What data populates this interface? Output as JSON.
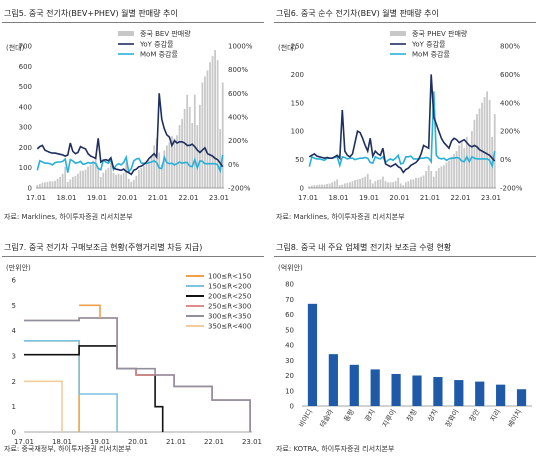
{
  "chart_data": [
    {
      "type": "bar",
      "title": "그림5. 중국 전기차(BEV+PHEV) 월별 판매량 추이",
      "ylabel": "(천대)",
      "ylim": [
        0,
        700
      ],
      "y2lim": [
        -200,
        1000
      ],
      "yticks": [
        "0",
        "100",
        "200",
        "300",
        "400",
        "500",
        "600",
        "700"
      ],
      "y2ticks": [
        "-200%",
        "0%",
        "200%",
        "400%",
        "600%",
        "800%",
        "1000%"
      ],
      "x_ticks": [
        "17.01",
        "18.01",
        "19.01",
        "20.01",
        "21.01",
        "22.01",
        "23.01"
      ],
      "legend_position": "top-right",
      "source": "자료: Marklines, 하이투자증권 리서치본부",
      "bar_series": {
        "name": "중국 BEV 판매량",
        "color": "#c8c8c8"
      },
      "line_series": [
        {
          "name": "YoY 증감률",
          "color": "#1f2f5e"
        },
        {
          "name": "MoM 증감률",
          "color": "#2ab0d8"
        }
      ],
      "months": 74,
      "bars": [
        15,
        20,
        25,
        28,
        30,
        33,
        32,
        35,
        45,
        55,
        70,
        105,
        30,
        42,
        55,
        60,
        70,
        85,
        85,
        90,
        105,
        115,
        135,
        150,
        100,
        55,
        75,
        90,
        100,
        140,
        75,
        65,
        70,
        65,
        75,
        125,
        45,
        30,
        40,
        60,
        90,
        100,
        110,
        115,
        135,
        160,
        210,
        245,
        175,
        115,
        185,
        210,
        225,
        255,
        245,
        260,
        310,
        340,
        390,
        460,
        400,
        320,
        460,
        310,
        410,
        520,
        550,
        580,
        620,
        650,
        680,
        630,
        290,
        520
      ],
      "yoy": [
        130,
        150,
        160,
        120,
        110,
        100,
        95,
        95,
        90,
        85,
        80,
        70,
        80,
        180,
        110,
        90,
        100,
        150,
        140,
        130,
        90,
        70,
        60,
        50,
        220,
        20,
        35,
        40,
        30,
        55,
        -30,
        -40,
        -45,
        -50,
        -40,
        -60,
        -70,
        -85,
        -50,
        -40,
        -20,
        -15,
        0,
        20,
        50,
        70,
        90,
        60,
        600,
        380,
        300,
        250,
        230,
        160,
        200,
        180,
        190,
        190,
        180,
        160,
        160,
        170,
        150,
        120,
        100,
        120,
        140,
        90,
        80,
        70,
        50,
        40,
        10,
        -20
      ],
      "mom": [
        -50,
        30,
        20,
        10,
        10,
        5,
        -5,
        15,
        20,
        20,
        25,
        45,
        -70,
        40,
        30,
        10,
        15,
        25,
        0,
        5,
        15,
        10,
        15,
        10,
        -35,
        -45,
        35,
        20,
        10,
        40,
        -45,
        -10,
        5,
        -5,
        15,
        60,
        -65,
        -35,
        30,
        45,
        50,
        10,
        10,
        5,
        15,
        20,
        30,
        15,
        -30,
        -35,
        60,
        15,
        5,
        10,
        -5,
        5,
        20,
        10,
        15,
        15,
        -15,
        -20,
        40,
        -30,
        30,
        25,
        5,
        5,
        5,
        5,
        5,
        -5,
        -55,
        80
      ]
    },
    {
      "type": "bar",
      "title": "그림6. 중국 순수 전기차(BEV) 월별 판매량 추이",
      "ylabel": "(천대)",
      "ylim": [
        0,
        250
      ],
      "y2lim": [
        -200,
        800
      ],
      "yticks": [
        "0",
        "50",
        "100",
        "150",
        "200",
        "250"
      ],
      "y2ticks": [
        "-200%",
        "0%",
        "200%",
        "400%",
        "600%",
        "800%"
      ],
      "x_ticks": [
        "17.01",
        "18.01",
        "19.01",
        "20.01",
        "21.01",
        "22.01",
        "23.01"
      ],
      "legend_position": "top-right",
      "source": "자료: Marklines, 하이투자증권 리서치본부",
      "bar_series": {
        "name": "중국 PHEV 판매량",
        "color": "#c8c8c8"
      },
      "line_series": [
        {
          "name": "YoY 증감률",
          "color": "#1f2f5e"
        },
        {
          "name": "MoM 증감률",
          "color": "#2ab0d8"
        }
      ],
      "months": 74,
      "bars": [
        3,
        4,
        5,
        5,
        6,
        6,
        6,
        7,
        8,
        10,
        12,
        15,
        5,
        6,
        8,
        9,
        10,
        12,
        14,
        15,
        16,
        18,
        20,
        25,
        15,
        8,
        12,
        14,
        15,
        20,
        12,
        10,
        10,
        10,
        12,
        18,
        8,
        5,
        10,
        12,
        15,
        15,
        18,
        18,
        20,
        22,
        30,
        40,
        30,
        20,
        30,
        35,
        38,
        40,
        45,
        48,
        55,
        60,
        65,
        75,
        80,
        70,
        90,
        75,
        100,
        120,
        130,
        140,
        150,
        160,
        170,
        155,
        90,
        130
      ],
      "yoy": [
        20,
        30,
        40,
        25,
        20,
        15,
        10,
        15,
        10,
        10,
        20,
        30,
        10,
        350,
        60,
        30,
        20,
        40,
        120,
        200,
        190,
        150,
        100,
        60,
        150,
        25,
        60,
        40,
        30,
        80,
        -30,
        -40,
        -50,
        -40,
        -30,
        -50,
        -60,
        -90,
        -70,
        -60,
        -40,
        -30,
        -20,
        0,
        40,
        100,
        90,
        80,
        600,
        300,
        250,
        200,
        150,
        120,
        100,
        80,
        130,
        150,
        140,
        120,
        130,
        140,
        120,
        100,
        90,
        100,
        90,
        70,
        60,
        50,
        40,
        30,
        10,
        -10
      ],
      "mom": [
        -50,
        20,
        10,
        5,
        5,
        0,
        -5,
        10,
        10,
        10,
        15,
        20,
        -40,
        20,
        15,
        5,
        10,
        10,
        0,
        5,
        10,
        10,
        15,
        10,
        -20,
        -25,
        20,
        10,
        5,
        20,
        -20,
        -5,
        5,
        -5,
        10,
        30,
        -30,
        -25,
        20,
        20,
        25,
        5,
        5,
        5,
        10,
        10,
        15,
        10,
        -15,
        480,
        30,
        10,
        5,
        10,
        -5,
        5,
        10,
        10,
        15,
        10,
        -10,
        -15,
        20,
        -15,
        20,
        10,
        5,
        5,
        5,
        5,
        5,
        -5,
        -45,
        60
      ]
    },
    {
      "type": "line",
      "title": "그림7. 중국 전기차 구매보조금 현황(주행거리별 차등 지급)",
      "ylabel": "(만위안)",
      "ylim": [
        0,
        6
      ],
      "yticks": [
        "0",
        "1",
        "2",
        "3",
        "4",
        "5",
        "6"
      ],
      "x_ticks": [
        "17.01",
        "18.01",
        "19.01",
        "20.01",
        "21.01",
        "22.01",
        "23.01"
      ],
      "x_range": [
        2017.0,
        2023.0
      ],
      "legend_position": "top-right",
      "source": "자료: 중국재정부, 하이투자증권 리서치본부",
      "series": [
        {
          "name": "100≤R<150",
          "color": "#f0a04b",
          "points": [
            [
              2017.0,
              3.6
            ],
            [
              2018.45,
              3.6
            ],
            [
              2018.45,
              0
            ]
          ]
        },
        {
          "name": "150≤R<200",
          "color": "#7dc2e0",
          "points": [
            [
              2017.0,
              3.6
            ],
            [
              2018.45,
              3.6
            ],
            [
              2018.45,
              1.5
            ],
            [
              2019.45,
              1.5
            ],
            [
              2019.45,
              0
            ]
          ]
        },
        {
          "name": "200≤R<250",
          "color": "#111111",
          "points": [
            [
              2017.0,
              3.05
            ],
            [
              2018.45,
              3.05
            ],
            [
              2018.45,
              3.4
            ],
            [
              2019.45,
              3.4
            ],
            [
              2019.45,
              2.5
            ],
            [
              2019.95,
              2.5
            ],
            [
              2019.95,
              2.25
            ],
            [
              2020.45,
              2.25
            ],
            [
              2020.45,
              1.0
            ],
            [
              2020.65,
              1.0
            ],
            [
              2020.65,
              0
            ]
          ]
        },
        {
          "name": "250≤R<300",
          "color": "#e08a8a",
          "points": [
            [
              2017.0,
              4.4
            ],
            [
              2018.45,
              4.4
            ],
            [
              2018.45,
              4.5
            ],
            [
              2019.45,
              4.5
            ],
            [
              2019.45,
              2.5
            ],
            [
              2019.95,
              2.5
            ],
            [
              2019.95,
              2.25
            ],
            [
              2020.95,
              2.25
            ],
            [
              2020.95,
              1.8
            ],
            [
              2021.95,
              1.8
            ],
            [
              2021.95,
              1.26
            ],
            [
              2022.95,
              1.26
            ],
            [
              2022.95,
              0
            ]
          ]
        },
        {
          "name": "300≤R<350",
          "color": "#8f8f9e",
          "points": [
            [
              2017.0,
              4.4
            ],
            [
              2018.45,
              4.4
            ],
            [
              2018.45,
              4.5
            ],
            [
              2019.45,
              4.5
            ],
            [
              2019.45,
              2.5
            ],
            [
              2020.45,
              2.5
            ],
            [
              2020.45,
              2.25
            ],
            [
              2020.95,
              2.25
            ],
            [
              2020.95,
              1.8
            ],
            [
              2021.95,
              1.8
            ],
            [
              2021.95,
              1.26
            ],
            [
              2022.95,
              1.26
            ],
            [
              2022.95,
              0
            ]
          ]
        },
        {
          "name": "350≤R<400",
          "color": "#f3cc9c",
          "points": [
            [
              2017.0,
              2.0
            ],
            [
              2018.0,
              2.0
            ],
            [
              2018.0,
              0
            ]
          ]
        },
        {
          "name": "_top",
          "color": "#f0a04b",
          "points": [
            [
              2018.45,
              5.0
            ],
            [
              2019.0,
              5.0
            ],
            [
              2019.0,
              4.5
            ]
          ]
        }
      ]
    },
    {
      "type": "bar",
      "title": "그림8. 중국 내 주요 업체별 전기차 보조금 수령 현황",
      "ylabel": "(억위안)",
      "ylim": [
        0,
        80
      ],
      "yticks": [
        "0",
        "10",
        "20",
        "30",
        "40",
        "50",
        "60",
        "70",
        "80"
      ],
      "color": "#1f5aa8",
      "categories": [
        "비야디",
        "테슬라",
        "동펑",
        "광치",
        "지루이",
        "창청",
        "상치",
        "장화이",
        "창안",
        "지리",
        "베이치"
      ],
      "values": [
        67,
        34,
        27,
        24,
        21,
        20,
        19,
        17,
        16,
        14,
        11
      ],
      "source": "자료: KOTRA, 하이투자증권 리서치본부"
    }
  ]
}
